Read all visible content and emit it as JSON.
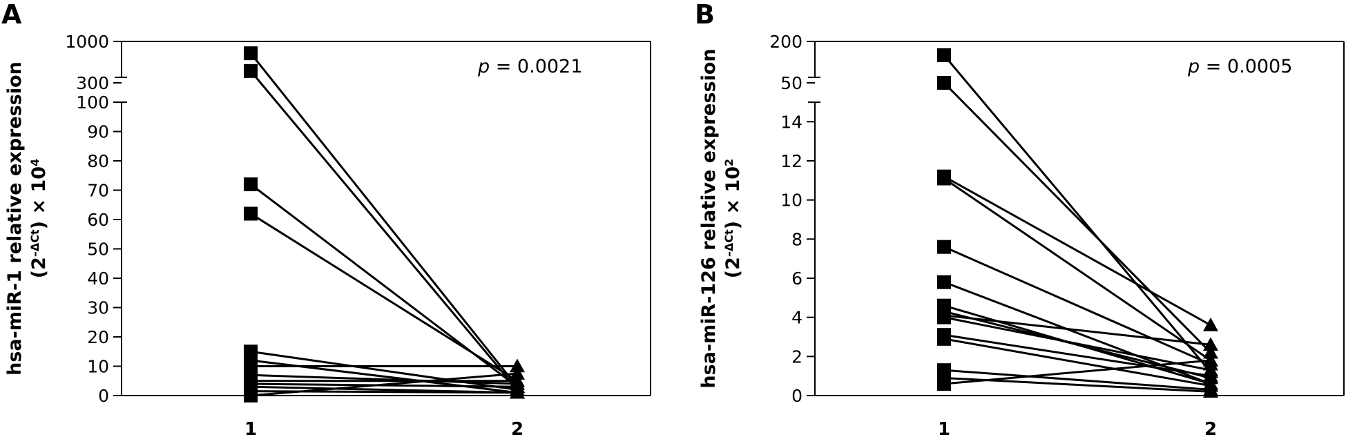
{
  "chart_data": [
    {
      "panel_label": "A",
      "type": "line",
      "categories": [
        "1",
        "2"
      ],
      "ylabel_line1": "hsa-miR-1 relative expression",
      "ylabel_line2_base": "(2",
      "ylabel_line2_sup": "–ΔCt",
      "ylabel_line2_mid": ") × 10",
      "ylabel_line2_exp": "4",
      "pvalue_prefix": "p",
      "pvalue_suffix": " = 0.0021",
      "y_ticks_lower": [
        "0",
        "10",
        "20",
        "30",
        "40",
        "50",
        "60",
        "70",
        "80",
        "90",
        "100"
      ],
      "y_ticks_upper": [
        "300",
        "1000"
      ],
      "ylim_lower": [
        0,
        100
      ],
      "ylim_upper": [
        300,
        1000
      ],
      "axis_break": true,
      "pairs": [
        [
          800,
          3
        ],
        [
          500,
          2
        ],
        [
          72,
          3
        ],
        [
          62,
          5
        ],
        [
          15,
          2
        ],
        [
          12,
          1
        ],
        [
          10,
          10
        ],
        [
          7,
          4
        ],
        [
          5,
          5
        ],
        [
          4,
          3
        ],
        [
          3,
          1
        ],
        [
          1.5,
          1
        ],
        [
          0,
          7.5
        ]
      ]
    },
    {
      "panel_label": "B",
      "type": "line",
      "categories": [
        "1",
        "2"
      ],
      "ylabel_line1": "hsa-miR-126 relative expression",
      "ylabel_line2_base": "(2",
      "ylabel_line2_sup": "–ΔCt",
      "ylabel_line2_mid": ") × 10",
      "ylabel_line2_exp": "2",
      "pvalue_prefix": "p",
      "pvalue_suffix": " = 0.0005",
      "y_ticks_lower": [
        "0",
        "2",
        "4",
        "6",
        "8",
        "10",
        "12",
        "14"
      ],
      "y_ticks_upper": [
        "50",
        "200"
      ],
      "ylim_lower": [
        0,
        15
      ],
      "ylim_upper": [
        50,
        200
      ],
      "axis_break": true,
      "pairs": [
        [
          150,
          1.2
        ],
        [
          50,
          2.2
        ],
        [
          11.2,
          3.6
        ],
        [
          11.1,
          1.8
        ],
        [
          7.6,
          1.6
        ],
        [
          5.8,
          0.6
        ],
        [
          4.6,
          0.6
        ],
        [
          4.3,
          0.9
        ],
        [
          4.1,
          2.6
        ],
        [
          4.0,
          1.3
        ],
        [
          3.1,
          1.0
        ],
        [
          2.9,
          0.5
        ],
        [
          1.3,
          0.3
        ],
        [
          0.9,
          0.2
        ],
        [
          0.6,
          1.8
        ]
      ]
    }
  ]
}
